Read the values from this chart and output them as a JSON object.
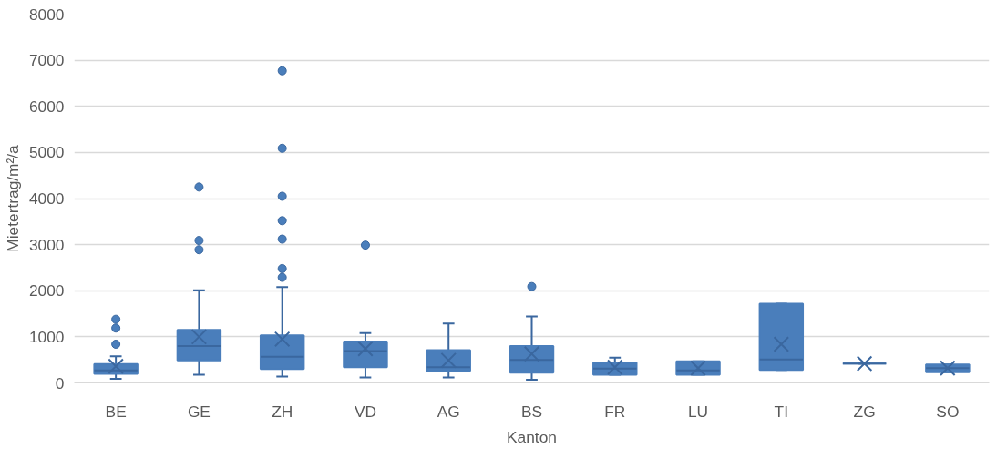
{
  "chart_data": {
    "type": "box",
    "xlabel": "Kanton",
    "ylabel": "Mietertrag/m²/a",
    "categories": [
      "BE",
      "GE",
      "ZH",
      "VD",
      "AG",
      "BS",
      "FR",
      "LU",
      "TI",
      "ZG",
      "SO"
    ],
    "color": "#4a7ebb",
    "boxes": [
      {
        "low": 90,
        "q1": 200,
        "median": 270,
        "q3": 410,
        "high": 580,
        "mean": 360,
        "outliers": [
          840,
          1190,
          1380
        ]
      },
      {
        "low": 180,
        "q1": 490,
        "median": 800,
        "q3": 1150,
        "high": 2010,
        "mean": 1000,
        "outliers": [
          2890,
          3090,
          4250
        ]
      },
      {
        "low": 140,
        "q1": 300,
        "median": 570,
        "q3": 1030,
        "high": 2080,
        "mean": 950,
        "outliers": [
          2290,
          2480,
          3120,
          3520,
          4050,
          5090,
          6770
        ]
      },
      {
        "low": 120,
        "q1": 340,
        "median": 690,
        "q3": 900,
        "high": 1080,
        "mean": 740,
        "outliers": [
          2990
        ]
      },
      {
        "low": 120,
        "q1": 260,
        "median": 340,
        "q3": 710,
        "high": 1290,
        "mean": 490
      },
      {
        "low": 70,
        "q1": 220,
        "median": 500,
        "q3": 800,
        "high": 1440,
        "mean": 630,
        "outliers": [
          2090
        ]
      },
      {
        "low": 180,
        "q1": 180,
        "median": 310,
        "q3": 440,
        "high": 550,
        "mean": 340
      },
      {
        "low": 180,
        "q1": 180,
        "median": 270,
        "q3": 470,
        "high": 470,
        "mean": 320
      },
      {
        "low": 280,
        "q1": 280,
        "median": 510,
        "q3": 1720,
        "high": 1720,
        "mean": 840
      },
      {
        "low": 420,
        "q1": 420,
        "median": 420,
        "q3": 420,
        "high": 420,
        "mean": 420
      },
      {
        "low": 230,
        "q1": 230,
        "median": 320,
        "q3": 400,
        "high": 400,
        "mean": 320
      }
    ],
    "ylim": [
      0,
      8000
    ],
    "yticks": [
      0,
      1000,
      2000,
      3000,
      4000,
      5000,
      6000,
      7000,
      8000
    ],
    "grid": "y",
    "marker": "circle"
  }
}
